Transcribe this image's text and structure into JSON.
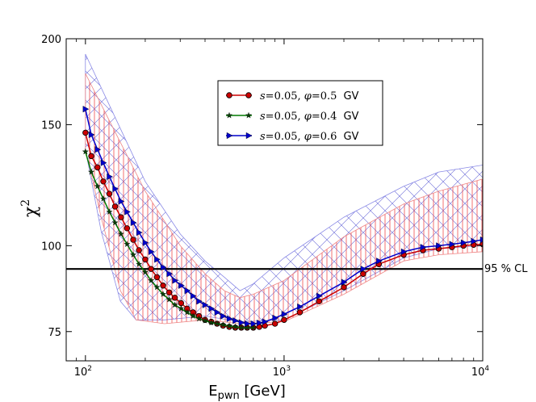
{
  "chart_data": {
    "type": "line",
    "xscale": "log",
    "yscale": "log",
    "xlim": [
      80,
      10000
    ],
    "ylim": [
      68,
      200
    ],
    "xticks": [
      {
        "value": 100,
        "base": "10",
        "exp": "2"
      },
      {
        "value": 1000,
        "base": "10",
        "exp": "3"
      },
      {
        "value": 10000,
        "base": "10",
        "exp": "4"
      }
    ],
    "yticks": [
      {
        "value": 75,
        "label": "75"
      },
      {
        "value": 100,
        "label": "100"
      },
      {
        "value": 150,
        "label": "150"
      },
      {
        "value": 200,
        "label": "200"
      }
    ],
    "xlabel": {
      "main": "E",
      "sub": "pwn",
      "unit": " [GeV]"
    },
    "ylabel": {
      "main": "χ",
      "sup": "2"
    },
    "reference_line": {
      "value": 92.5,
      "label": "95 % CL"
    },
    "series": [
      {
        "name": "s=0.05, φ=0.5 GV",
        "legend": {
          "pre": "s",
          "eq1": "=0.05, ",
          "phi": "φ",
          "eq2": "=0.5",
          "unit": "GV"
        },
        "color": "#cc0000",
        "line_color": "#cc0000",
        "marker": "circle",
        "x": [
          100,
          107,
          115,
          123,
          132,
          141,
          151,
          162,
          174,
          186,
          200,
          214,
          229,
          246,
          264,
          282,
          303,
          325,
          348,
          373,
          400,
          430,
          460,
          493,
          530,
          568,
          609,
          652,
          700,
          750,
          800,
          900,
          1000,
          1200,
          1500,
          2000,
          2500,
          3000,
          4000,
          5000,
          6000,
          7000,
          8000,
          9000,
          10000
        ],
        "y": [
          146,
          135,
          130,
          124,
          119,
          114,
          110,
          106,
          102,
          98.5,
          95.5,
          92.5,
          90,
          87.5,
          85.5,
          84,
          82.5,
          81,
          80,
          79,
          78,
          77.5,
          77,
          76.5,
          76.2,
          76,
          76,
          76,
          76,
          76.2,
          76.5,
          77,
          78,
          80,
          83,
          87,
          91,
          94,
          97,
          98.5,
          99,
          99.5,
          100,
          100.3,
          100.5
        ]
      },
      {
        "name": "s=0.05, φ=0.4 GV",
        "legend": {
          "pre": "s",
          "eq1": "=0.05, ",
          "phi": "φ",
          "eq2": "=0.4",
          "unit": "GV"
        },
        "color": "#0a3d0a",
        "line_color": "#007a00",
        "marker": "star",
        "x": [
          100,
          107,
          115,
          123,
          132,
          141,
          151,
          162,
          174,
          186,
          200,
          214,
          229,
          246,
          264,
          282,
          303,
          325,
          348,
          373,
          400,
          430,
          460,
          493,
          530,
          568,
          609,
          652,
          700
        ],
        "y": [
          137,
          128,
          122,
          117,
          112,
          108,
          104,
          100.5,
          97,
          94,
          91.5,
          89,
          87,
          85,
          83.5,
          82,
          81,
          80,
          79,
          78.3,
          77.8,
          77.3,
          77,
          76.7,
          76.4,
          76.2,
          76,
          76,
          76
        ]
      },
      {
        "name": "s=0.05, φ=0.6 GV",
        "legend": {
          "pre": "s",
          "eq1": "=0.05, ",
          "phi": "φ",
          "eq2": "=0.6",
          "unit": "GV"
        },
        "color": "#0000cc",
        "line_color": "#0000cc",
        "marker": "triangle-right",
        "x": [
          100,
          107,
          115,
          123,
          132,
          141,
          151,
          162,
          174,
          186,
          200,
          214,
          229,
          246,
          264,
          282,
          303,
          325,
          348,
          373,
          400,
          430,
          460,
          493,
          530,
          568,
          609,
          652,
          700,
          750,
          800,
          900,
          1000,
          1200,
          1500,
          2000,
          2500,
          3000,
          4000,
          5000,
          6000,
          7000,
          8000,
          9000,
          10000
        ],
        "y": [
          158,
          145,
          138,
          132,
          126,
          121,
          116,
          112,
          108,
          104.5,
          101,
          98,
          95.5,
          93,
          91,
          89,
          87.5,
          86,
          84.5,
          83,
          82,
          81,
          80,
          79,
          78.3,
          77.8,
          77.3,
          77,
          77,
          77.2,
          77.5,
          78.5,
          79.5,
          81.5,
          84.5,
          88.5,
          92.5,
          95,
          98,
          99.5,
          100,
          100.5,
          101,
          101.5,
          102
        ]
      }
    ],
    "band_red": {
      "upper": [
        [
          100,
          178
        ],
        [
          200,
          120
        ],
        [
          300,
          100
        ],
        [
          400,
          91
        ],
        [
          500,
          86
        ],
        [
          600,
          84
        ],
        [
          700,
          85
        ],
        [
          1000,
          89
        ],
        [
          2000,
          103
        ],
        [
          4000,
          115
        ],
        [
          6000,
          120
        ],
        [
          10000,
          125
        ]
      ],
      "lower": [
        [
          100,
          138
        ],
        [
          120,
          110
        ],
        [
          150,
          86
        ],
        [
          180,
          78
        ],
        [
          250,
          77
        ],
        [
          400,
          78
        ],
        [
          600,
          77
        ],
        [
          1000,
          77.5
        ],
        [
          2000,
          85
        ],
        [
          4000,
          95
        ],
        [
          6000,
          97
        ],
        [
          10000,
          98
        ]
      ]
    },
    "band_blue": {
      "upper": [
        [
          100,
          190
        ],
        [
          200,
          124
        ],
        [
          300,
          104
        ],
        [
          400,
          95
        ],
        [
          500,
          90
        ],
        [
          600,
          86
        ],
        [
          700,
          88
        ],
        [
          1000,
          96
        ],
        [
          2000,
          110
        ],
        [
          4000,
          122
        ],
        [
          6000,
          128
        ],
        [
          10000,
          131
        ]
      ],
      "lower": [
        [
          100,
          138
        ],
        [
          120,
          105
        ],
        [
          150,
          83
        ],
        [
          180,
          78
        ],
        [
          250,
          78
        ],
        [
          400,
          79
        ],
        [
          600,
          77.5
        ],
        [
          1000,
          78
        ],
        [
          2000,
          86
        ],
        [
          4000,
          96
        ],
        [
          6000,
          99
        ],
        [
          10000,
          100
        ]
      ]
    }
  }
}
